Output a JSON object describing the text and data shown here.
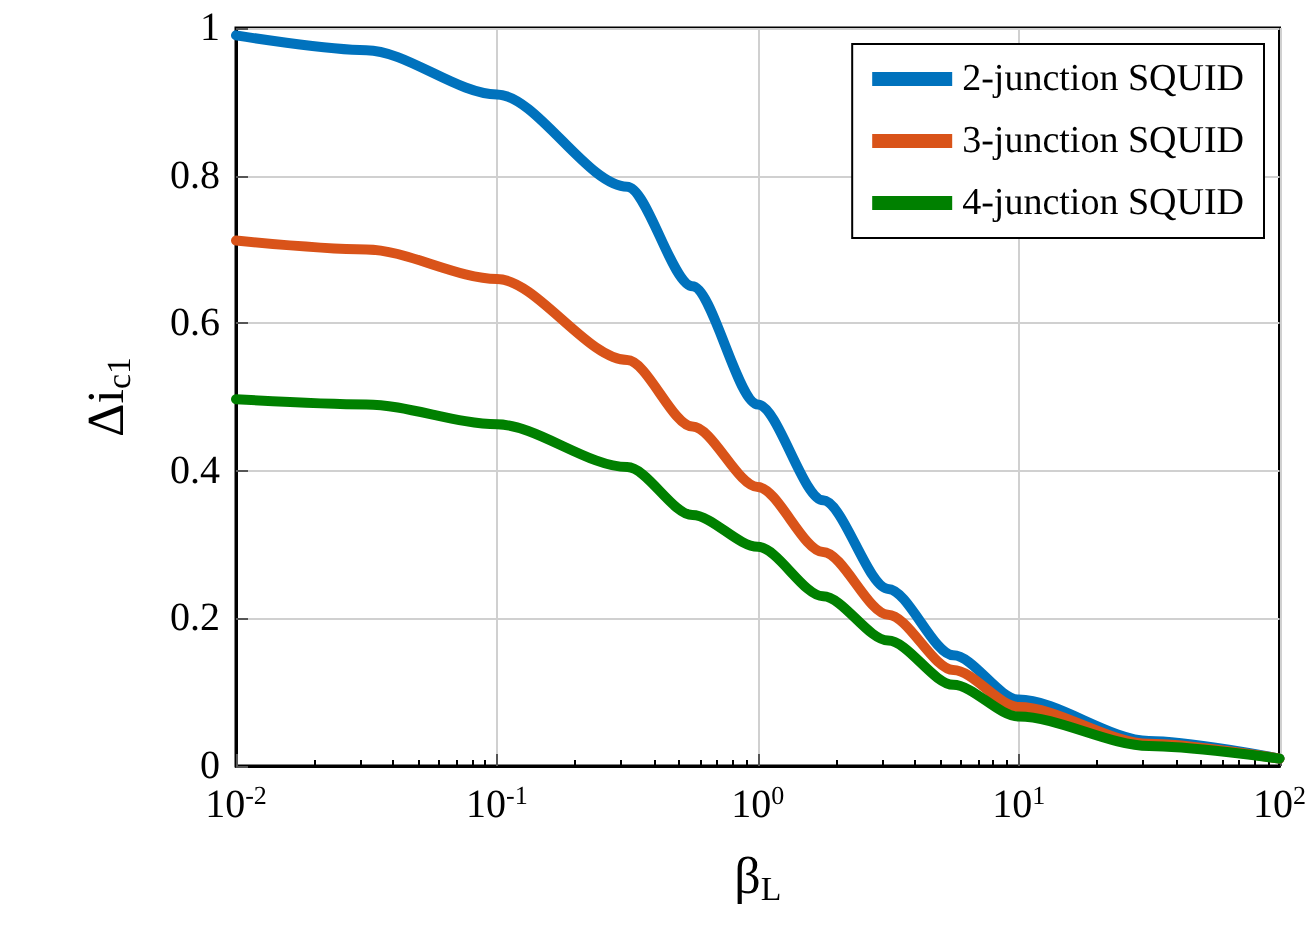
{
  "chart_data": {
    "type": "line",
    "xlabel": "β$_{L}$",
    "ylabel": "Δi$_{c1}$",
    "log": "x",
    "x": [
      0.01,
      0.0316,
      0.1,
      0.316,
      0.562,
      1,
      1.78,
      3.16,
      5.62,
      10,
      31.6,
      100
    ],
    "series": [
      {
        "name": "2-junction SQUID",
        "color": "#0072bd",
        "values": [
          0.99,
          0.97,
          0.91,
          0.785,
          0.65,
          0.49,
          0.36,
          0.24,
          0.15,
          0.09,
          0.034,
          0.01
        ]
      },
      {
        "name": "3-junction SQUID",
        "color": "#d95319",
        "values": [
          0.712,
          0.7,
          0.66,
          0.55,
          0.46,
          0.378,
          0.29,
          0.205,
          0.13,
          0.08,
          0.03,
          0.01
        ]
      },
      {
        "name": "4-junction SQUID",
        "color": "#008000",
        "values": [
          0.497,
          0.49,
          0.463,
          0.405,
          0.34,
          0.297,
          0.23,
          0.17,
          0.11,
          0.067,
          0.027,
          0.01
        ]
      }
    ],
    "xlim": [
      0.01,
      100
    ],
    "xticks": [
      {
        "value": 0.01,
        "label": "10$^{-2}$"
      },
      {
        "value": 0.1,
        "label": "10$^{-1}$"
      },
      {
        "value": 1,
        "label": "10$^{0}$"
      },
      {
        "value": 10,
        "label": "10$^{1}$"
      },
      {
        "value": 100,
        "label": "10$^{2}$"
      }
    ],
    "ylim": [
      0,
      1
    ],
    "yticks": [
      0,
      0.2,
      0.4,
      0.6,
      0.8,
      1
    ],
    "grid": true,
    "legend": "top right",
    "marker": "none",
    "line_style": "solid"
  }
}
